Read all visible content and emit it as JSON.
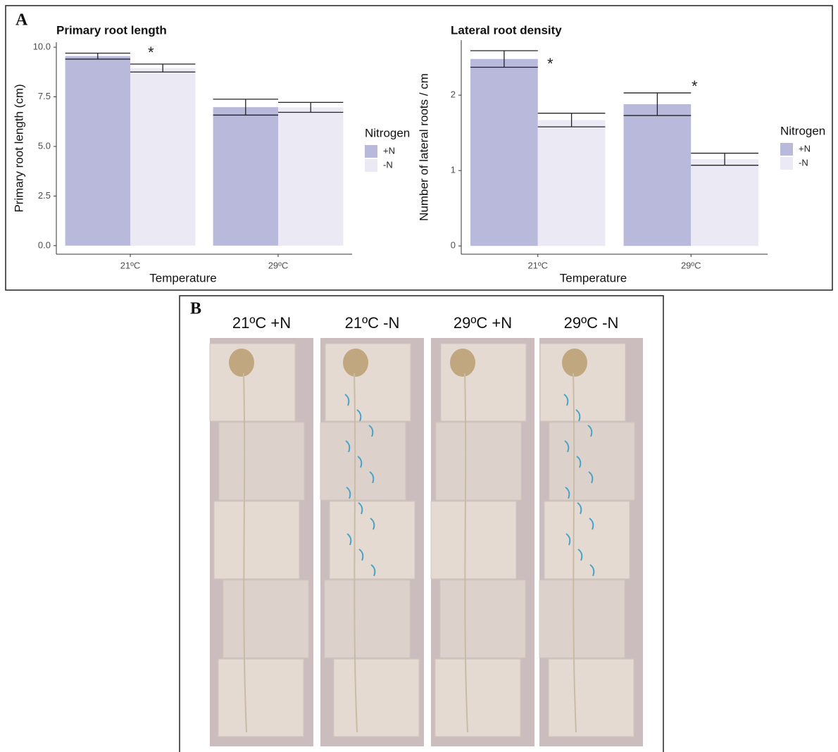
{
  "figure": {
    "panel_labels": [
      "A",
      "B"
    ],
    "photo_columns": [
      "21ºC +N",
      "21ºC -N",
      "29ºC +N",
      "29ºC -N"
    ]
  },
  "chart_data": [
    {
      "type": "bar",
      "title": "Primary root length",
      "x_label": "Temperature",
      "y_label": "Primary root length (cm)",
      "categories": [
        "21ºC",
        "29ºC"
      ],
      "series": [
        {
          "name": "+N",
          "color": "#b9b9dc",
          "values": [
            9.55,
            6.98
          ],
          "errors": [
            0.15,
            0.4
          ]
        },
        {
          "name": "-N",
          "color": "#ebeaf4",
          "values": [
            8.95,
            6.97
          ],
          "errors": [
            0.2,
            0.25
          ]
        }
      ],
      "ylim": [
        -0.43,
        10.25
      ],
      "yticks": [
        {
          "value": 0,
          "label": "0.0"
        },
        2.5,
        {
          "value": 5,
          "label": "5.0"
        },
        7.5,
        {
          "value": 10,
          "label": "10.0"
        }
      ],
      "legend_title": "Nitrogen",
      "legend": "right",
      "annotations": [
        "*"
      ]
    },
    {
      "type": "bar",
      "title": "Lateral root density",
      "x_label": "Temperature",
      "y_label": "Number of lateral roots / cm",
      "categories": [
        "21ºC",
        "29ºC"
      ],
      "series": [
        {
          "name": "+N",
          "color": "#b9b9dc",
          "values": [
            2.48,
            1.88
          ],
          "errors": [
            0.11,
            0.15
          ]
        },
        {
          "name": "-N",
          "color": "#ebeaf4",
          "values": [
            1.67,
            1.15
          ],
          "errors": [
            0.09,
            0.08
          ]
        }
      ],
      "ylim": [
        -0.11,
        2.73
      ],
      "yticks": [
        0,
        1,
        2
      ],
      "legend_title": "Nitrogen",
      "legend": "right",
      "annotations": [
        "*",
        "*"
      ]
    }
  ]
}
